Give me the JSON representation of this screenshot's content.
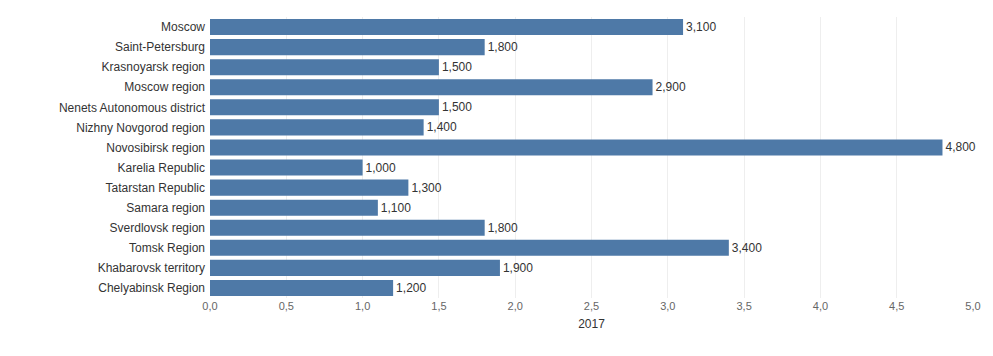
{
  "chart_data": {
    "type": "bar",
    "orientation": "horizontal",
    "x_label": "2017",
    "categories": [
      "Moscow",
      "Saint-Petersburg",
      "Krasnoyarsk region",
      "Moscow region",
      "Nenets Autonomous district",
      "Nizhny Novgorod region",
      "Novosibirsk region",
      "Karelia Republic",
      "Tatarstan Republic",
      "Samara region",
      "Sverdlovsk region",
      "Tomsk Region",
      "Khabarovsk territory",
      "Chelyabinsk Region"
    ],
    "values": [
      3.1,
      1.8,
      1.5,
      2.9,
      1.5,
      1.4,
      4.8,
      1.0,
      1.3,
      1.1,
      1.8,
      3.4,
      1.9,
      1.2
    ],
    "value_labels": [
      "3,100",
      "1,800",
      "1,500",
      "2,900",
      "1,500",
      "1,400",
      "4,800",
      "1,000",
      "1,300",
      "1,100",
      "1,800",
      "3,400",
      "1,900",
      "1,200"
    ],
    "data_labels": true,
    "color": "#4e79a7",
    "xlim": [
      0,
      5
    ],
    "xticks": [
      {
        "value": 0,
        "label": "0,0"
      },
      {
        "value": 0.5,
        "label": "0,5"
      },
      {
        "value": 1,
        "label": "1,0"
      },
      {
        "value": 1.5,
        "label": "1,5"
      },
      {
        "value": 2,
        "label": "2,0"
      },
      {
        "value": 2.5,
        "label": "2,5"
      },
      {
        "value": 3,
        "label": "3,0"
      },
      {
        "value": 3.5,
        "label": "3,5"
      },
      {
        "value": 4,
        "label": "4,0"
      },
      {
        "value": 4.5,
        "label": "4,5"
      },
      {
        "value": 5,
        "label": "5,0"
      }
    ],
    "grid": true
  }
}
